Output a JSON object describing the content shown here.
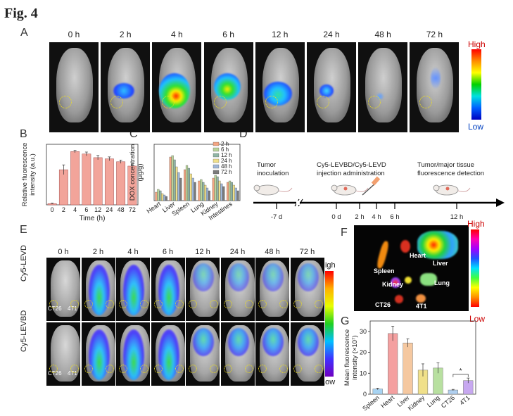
{
  "figure_title": "Fig. 4",
  "panels": {
    "A": "A",
    "B": "B",
    "C": "C",
    "D": "D",
    "E": "E",
    "F": "F",
    "G": "G"
  },
  "panelA": {
    "timepoints": [
      "0 h",
      "2 h",
      "4 h",
      "6 h",
      "12 h",
      "24 h",
      "48 h",
      "72 h"
    ],
    "scale_high": "High",
    "scale_low": "Low"
  },
  "panelD": {
    "step1": "Tumor inoculation",
    "step1_l1": "Tumor",
    "step1_l2": "inoculation",
    "step2_l1": "Cy5-LEVBD/Cy5-LEVD",
    "step2_l2": "injection administration",
    "step3_l1": "Tumor/major tissue",
    "step3_l2": "fluorescence detection",
    "ticks": [
      "-7 d",
      "0 d",
      "2 h",
      "4 h",
      "6 h",
      "12 h"
    ]
  },
  "panelE": {
    "timepoints": [
      "0 h",
      "2 h",
      "4 h",
      "6 h",
      "12 h",
      "24 h",
      "48 h",
      "72 h"
    ],
    "row1": "Cy5-LEVD",
    "row2": "Cy5-LEVBD",
    "tumor1": "CT26",
    "tumor2": "4T1",
    "scale_high": "High",
    "scale_low": "Low"
  },
  "panelF": {
    "organs": [
      "Heart",
      "Liver",
      "Spleen",
      "Kidney",
      "Lung",
      "CT26",
      "4T1"
    ],
    "scale_high": "High",
    "scale_low": "Low"
  },
  "chart_data": [
    {
      "panel": "B",
      "type": "bar",
      "categories": [
        "0",
        "2",
        "4",
        "6",
        "12",
        "24",
        "48",
        "72"
      ],
      "values": [
        0.5,
        14.5,
        22.0,
        21.0,
        19.5,
        19.0,
        17.8,
        16.0
      ],
      "errors": [
        0.2,
        2.0,
        0.5,
        0.8,
        0.9,
        0.8,
        0.7,
        0.8
      ],
      "xlabel": "Time (h)",
      "ylabel": "Relative fluorescence intensity (a.u.)",
      "ylabel_l1": "Relative fluorescence",
      "ylabel_l2": "intensity (a.u.)",
      "ylim": [
        0,
        25
      ],
      "color": "#f2a49a"
    },
    {
      "panel": "C",
      "type": "bar",
      "categories": [
        "Heart",
        "Liver",
        "Spleen",
        "Lung",
        "Kidney",
        "Intestines"
      ],
      "series": [
        {
          "name": "2 h",
          "color": "#f4a582",
          "values": [
            3.0,
            15.5,
            11.0,
            7.0,
            8.0,
            6.5
          ]
        },
        {
          "name": "6 h",
          "color": "#b8d39a",
          "values": [
            4.0,
            16.0,
            12.5,
            7.5,
            9.0,
            7.0
          ]
        },
        {
          "name": "12 h",
          "color": "#8fb5a5",
          "values": [
            3.5,
            14.5,
            11.5,
            6.5,
            8.5,
            6.5
          ]
        },
        {
          "name": "24 h",
          "color": "#f0e08a",
          "values": [
            2.5,
            12.0,
            9.5,
            5.5,
            7.0,
            5.5
          ]
        },
        {
          "name": "48 h",
          "color": "#9eb6d8",
          "values": [
            2.0,
            10.0,
            8.0,
            4.5,
            6.0,
            4.5
          ]
        },
        {
          "name": "72 h",
          "color": "#7a7a7a",
          "values": [
            1.5,
            8.0,
            6.5,
            3.5,
            5.0,
            3.5
          ]
        }
      ],
      "xlabel": "",
      "ylabel": "DOX concentration (μg/g)",
      "ylabel_l1": "DOX concentration",
      "ylabel_l2": "(μg/g)",
      "ylim": [
        0,
        20
      ]
    },
    {
      "panel": "G",
      "type": "bar",
      "categories": [
        "Spleen",
        "Heart",
        "Liver",
        "Kidney",
        "Lung",
        "CT26",
        "4T1"
      ],
      "values": [
        2.5,
        29.0,
        24.5,
        11.5,
        12.5,
        2.0,
        6.5
      ],
      "errors": [
        0.4,
        3.5,
        2.0,
        3.0,
        2.5,
        0.3,
        1.2
      ],
      "colors": [
        "#a7d3f2",
        "#f4a0a0",
        "#f5c8a0",
        "#f0e08a",
        "#b8e0a0",
        "#b0d0f0",
        "#c7a8f0"
      ],
      "ylabel": "Mean fluorescence intensity (×10⁷)",
      "ylabel_l1": "Mean fluorescence",
      "ylabel_l2": "intensity (×10⁷)",
      "ylim": [
        0,
        35
      ],
      "yticks": [
        "0",
        "10",
        "20",
        "30"
      ],
      "annotation": "*"
    }
  ]
}
